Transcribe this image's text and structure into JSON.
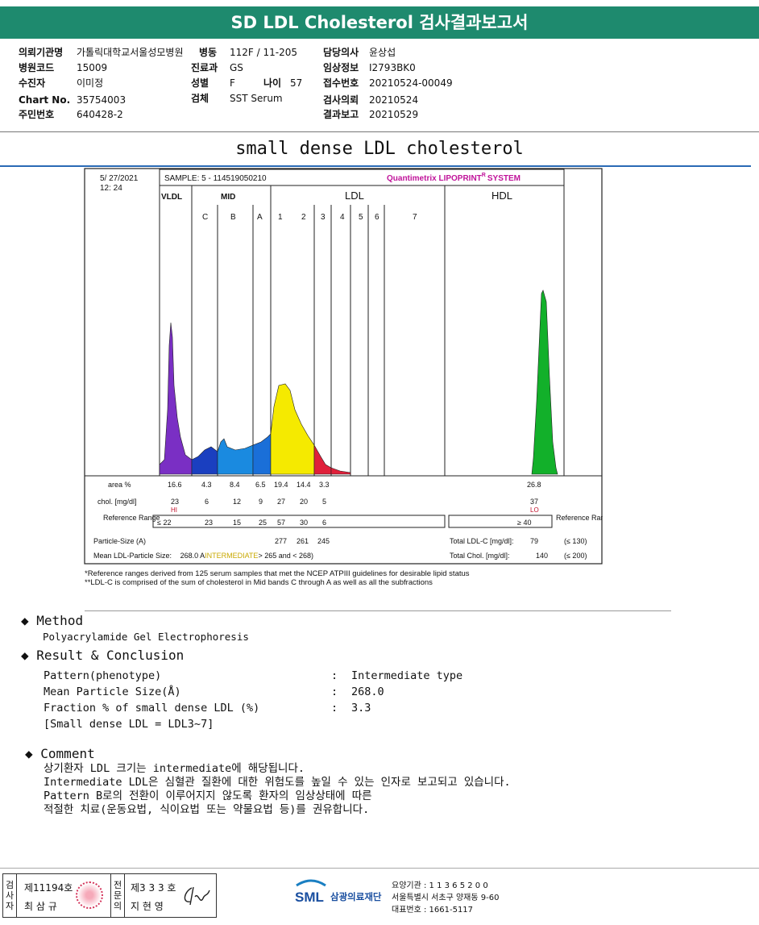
{
  "report_title": "SD LDL Cholesterol 검사결과보고서",
  "info": {
    "hospital_label": "의뢰기관명",
    "hospital": "가톨릭대학교서울성모병원",
    "ward_label": "병동",
    "ward": "112F / 11-205",
    "doctor_label": "담당의사",
    "doctor": "윤상섭",
    "code_label": "병원코드",
    "code": "15009",
    "dept_label": "진료과",
    "dept": "GS",
    "clinical_label": "임상정보",
    "clinical": "I2793BK0",
    "patient_label": "수진자",
    "patient": "이미정",
    "sex_label": "성별",
    "sex": "F",
    "age_label": "나이",
    "age": "57",
    "receipt_label": "접수번호",
    "receipt": "20210524-00049",
    "chart_label": "Chart No.",
    "chart": "35754003",
    "specimen_label": "검체",
    "specimen": "SST Serum",
    "request_label": "검사의뢰",
    "request": "20210524",
    "id_label": "주민번호",
    "id": "640428-2",
    "report_label": "결과보고",
    "report": "20210529"
  },
  "subtitle": "small dense LDL cholesterol",
  "chart_data": {
    "type": "area",
    "datetime": "5/ 27/2021",
    "time": "12: 24",
    "sample": "SAMPLE:   5 - 114519050210",
    "brand": "Quantimetrix LIPOPRINT",
    "brand_suffix": "SYSTEM",
    "brand_mark": "R",
    "groups": [
      "VLDL",
      "MID",
      "LDL",
      "HDL"
    ],
    "bands": [
      "C",
      "B",
      "A",
      "1",
      "2",
      "3",
      "4",
      "5",
      "6",
      "7"
    ],
    "area_label": "area %",
    "chol_label": "chol. [mg/dl]",
    "ref_label": "Reference Range",
    "ref_label_right": "Reference Range",
    "fractions": [
      {
        "name": "VLDL",
        "area": "16.6",
        "chol": "23",
        "flag": "HI",
        "ref": "≤ 22",
        "color": "#7a2fc4"
      },
      {
        "name": "C",
        "area": "4.3",
        "chol": "6",
        "ref": "23",
        "color": "#1a3fc0"
      },
      {
        "name": "B",
        "area": "8.4",
        "chol": "12",
        "ref": "15",
        "color": "#1a8ae0"
      },
      {
        "name": "A",
        "area": "6.5",
        "chol": "9",
        "ref": "25",
        "color": "#1a6fd8"
      },
      {
        "name": "LDL1",
        "area": "19.4",
        "chol": "27",
        "ref": "57",
        "color": "#f5ea00"
      },
      {
        "name": "LDL2",
        "area": "14.4",
        "chol": "20",
        "ref": "30",
        "color": "#f5ea00"
      },
      {
        "name": "LDL3",
        "area": "3.3",
        "chol": "5",
        "ref": "6",
        "color": "#e0203a"
      },
      {
        "name": "HDL",
        "area": "26.8",
        "chol": "37",
        "flag": "LO",
        "ref": "≥ 40",
        "color": "#12b02a"
      }
    ],
    "particle_label": "Particle-Size (A)",
    "particle_sizes": [
      "277",
      "261",
      "245"
    ],
    "mean_label": "Mean LDL-Particle Size:",
    "mean_value": "268.0 A",
    "mean_class": "INTERMEDIATE",
    "mean_range": "> 265 and < 268)",
    "total_ldl_label": "Total LDL-C [mg/dl]:",
    "total_ldl": "79",
    "total_ldl_ref": "(≤ 130)",
    "total_chol_label": "Total Chol. [mg/dl]:",
    "total_chol": "140",
    "total_chol_ref": "(≤ 200)"
  },
  "footnotes": [
    "*Reference ranges derived from 125 serum samples that met the NCEP ATPIII guidelines for desirable lipid status",
    "**LDL-C is comprised of the sum of cholesterol in Mid bands C through A as well as all the subfractions"
  ],
  "method": {
    "title": "Method",
    "text": "Polyacrylamide Gel Electrophoresis"
  },
  "result": {
    "title": "Result & Conclusion",
    "rows": [
      {
        "label": "Pattern(phenotype)",
        "value": "Intermediate type"
      },
      {
        "label": "Mean Particle Size(Å)",
        "value": "268.0"
      },
      {
        "label": "Fraction % of small dense LDL (%)",
        "value": "3.3"
      }
    ],
    "note": "[Small dense LDL = LDL3~7]"
  },
  "comment": {
    "title": "Comment",
    "lines": [
      "상기환자 LDL 크기는 intermediate에 해당됩니다.",
      "Intermediate LDL은 심혈관 질환에 대한 위험도를 높일 수 있는 인자로 보고되고 있습니다.",
      "Pattern B로의 전환이 이루어지지 않도록 환자의 임상상태에 따른",
      "적절한 치료(운동요법, 식이요법 또는 약물요법 등)를 권유합니다."
    ]
  },
  "footer": {
    "examiner_label": "검사자",
    "examiner_no": "제11194호",
    "examiner_name": "최 삼 규",
    "reviewer_label": "전문의",
    "reviewer_no": "제3 3 3 호",
    "reviewer_name": "지 현 영",
    "org_logo": "SML",
    "org_name": "삼광의료재단",
    "org_code": "요양기관 : 1 1 3 6 5 2 0 0",
    "org_address": "서울특별시 서초구 양재동 9-60",
    "org_phone": "대표번호 : 1661-5117"
  }
}
